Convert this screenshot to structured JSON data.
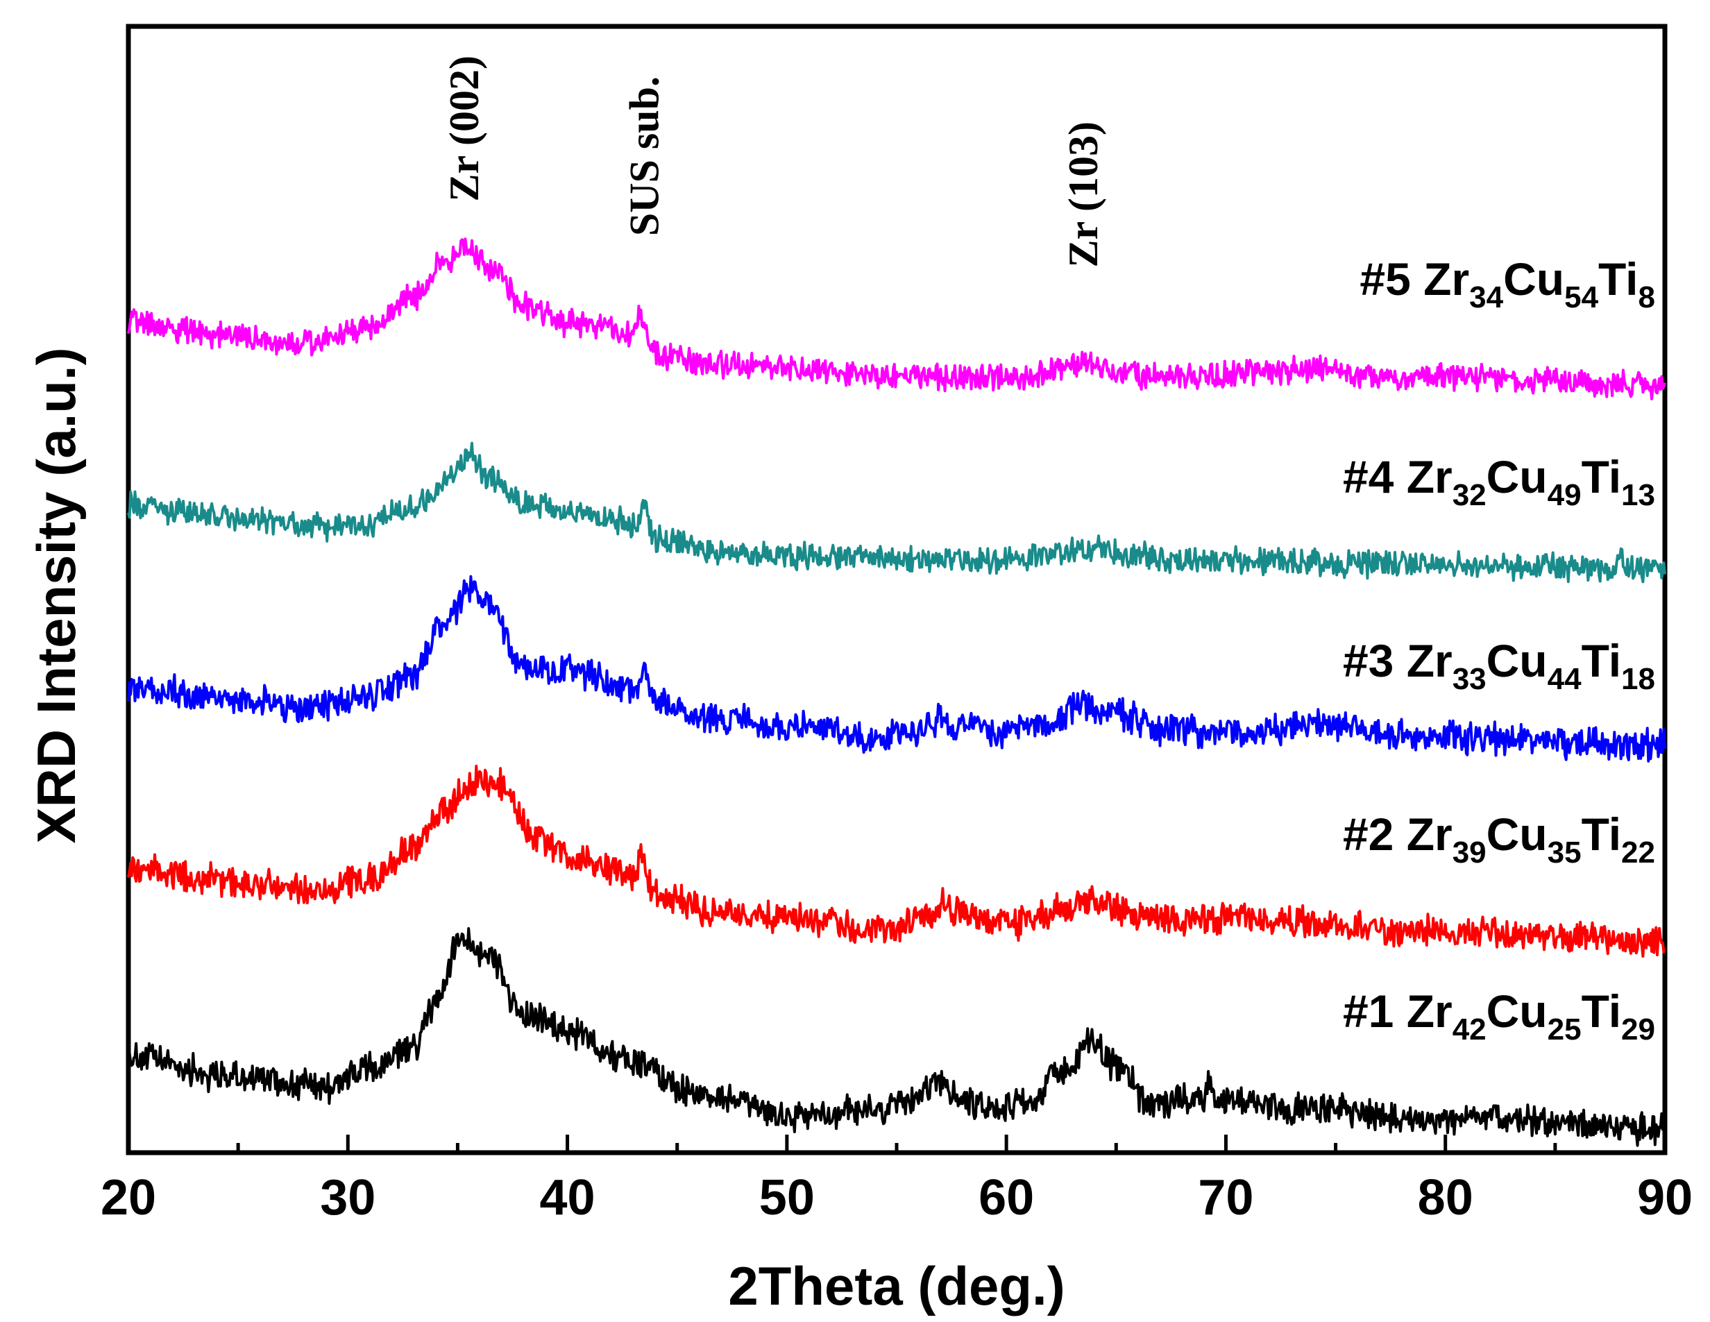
{
  "chart_data": {
    "type": "line",
    "title": "",
    "xlabel": "2Theta (deg.)",
    "ylabel": "XRD Intensity (a.u.)",
    "xlim": [
      20,
      90
    ],
    "xticks": [
      20,
      30,
      40,
      50,
      60,
      70,
      80,
      90
    ],
    "yticks_shown": false,
    "peak_annotations": [
      {
        "label": "Zr (002)",
        "x": 35.3
      },
      {
        "label": "SUS sub.",
        "x": 43.5
      },
      {
        "label": "Zr (103)",
        "x": 63.5
      }
    ],
    "series": [
      {
        "id": "s1",
        "label_num": "#1 ",
        "color": "#000000",
        "formula": [
          [
            "Zr",
            "42"
          ],
          [
            "Cu",
            "25"
          ],
          [
            "Ti",
            "29"
          ]
        ],
        "baseline": 1.0,
        "bg": 0.03,
        "points": [
          [
            20,
            0.17
          ],
          [
            25,
            0.12
          ],
          [
            29,
            0.1
          ],
          [
            31,
            0.14
          ],
          [
            33,
            0.19
          ],
          [
            34,
            0.3
          ],
          [
            35.2,
            0.46
          ],
          [
            36.5,
            0.41
          ],
          [
            38,
            0.27
          ],
          [
            40,
            0.23
          ],
          [
            43,
            0.16
          ],
          [
            46,
            0.08
          ],
          [
            50,
            0.03
          ],
          [
            54,
            0.04
          ],
          [
            57,
            0.09
          ],
          [
            59,
            0.05
          ],
          [
            61,
            0.06
          ],
          [
            62.5,
            0.13
          ],
          [
            63.8,
            0.2
          ],
          [
            65,
            0.15
          ],
          [
            66.5,
            0.06
          ],
          [
            69,
            0.07
          ],
          [
            72,
            0.05
          ],
          [
            80,
            0.02
          ],
          [
            90,
            0.0
          ]
        ],
        "spikes": [
          [
            57.0,
            0.02
          ],
          [
            69.2,
            0.03
          ],
          [
            82.0,
            0.02
          ]
        ]
      },
      {
        "id": "s2",
        "label_num": "#2 ",
        "color": "#ff0000",
        "formula": [
          [
            "Zr",
            "39"
          ],
          [
            "Cu",
            "35"
          ],
          [
            "Ti",
            "22"
          ]
        ],
        "baseline": 1.0,
        "bg": 0.03,
        "points": [
          [
            20,
            0.17
          ],
          [
            25,
            0.14
          ],
          [
            29,
            0.12
          ],
          [
            31,
            0.15
          ],
          [
            33,
            0.22
          ],
          [
            34.5,
            0.32
          ],
          [
            35.8,
            0.38
          ],
          [
            37,
            0.37
          ],
          [
            38.5,
            0.25
          ],
          [
            40,
            0.2
          ],
          [
            43,
            0.16
          ],
          [
            44.5,
            0.1
          ],
          [
            47,
            0.06
          ],
          [
            50,
            0.05
          ],
          [
            54,
            0.02
          ],
          [
            57,
            0.07
          ],
          [
            60,
            0.04
          ],
          [
            62.5,
            0.07
          ],
          [
            64,
            0.1
          ],
          [
            66,
            0.05
          ],
          [
            70,
            0.05
          ],
          [
            80,
            0.02
          ],
          [
            90,
            0.0
          ]
        ],
        "spikes": [
          [
            43.4,
            0.06
          ],
          [
            57.0,
            0.02
          ]
        ]
      },
      {
        "id": "s3",
        "label_num": "#3 ",
        "color": "#0000ff",
        "formula": [
          [
            "Zr",
            "33"
          ],
          [
            "Cu",
            "44"
          ],
          [
            "Ti",
            "18"
          ]
        ],
        "baseline": 1.0,
        "bg": 0.03,
        "points": [
          [
            20,
            0.14
          ],
          [
            25,
            0.11
          ],
          [
            28,
            0.09
          ],
          [
            31,
            0.12
          ],
          [
            33,
            0.17
          ],
          [
            34.5,
            0.3
          ],
          [
            35.5,
            0.38
          ],
          [
            36.5,
            0.34
          ],
          [
            38,
            0.19
          ],
          [
            40,
            0.18
          ],
          [
            43,
            0.14
          ],
          [
            44.5,
            0.1
          ],
          [
            47,
            0.06
          ],
          [
            50,
            0.05
          ],
          [
            54,
            0.02
          ],
          [
            57,
            0.05
          ],
          [
            60,
            0.03
          ],
          [
            62,
            0.06
          ],
          [
            63.5,
            0.1
          ],
          [
            65,
            0.08
          ],
          [
            67,
            0.04
          ],
          [
            70,
            0.03
          ],
          [
            74,
            0.05
          ],
          [
            80,
            0.02
          ],
          [
            90,
            0.0
          ]
        ],
        "spikes": [
          [
            43.5,
            0.06
          ],
          [
            57.0,
            0.02
          ],
          [
            68.5,
            0.02
          ],
          [
            74.0,
            0.02
          ]
        ]
      },
      {
        "id": "s4",
        "label_num": "#4 ",
        "color": "#1a8b8b",
        "formula": [
          [
            "Zr",
            "32"
          ],
          [
            "Cu",
            "49"
          ],
          [
            "Ti",
            "13"
          ]
        ],
        "baseline": 1.0,
        "bg": 0.025,
        "points": [
          [
            20,
            0.15
          ],
          [
            25,
            0.12
          ],
          [
            29,
            0.1
          ],
          [
            31,
            0.11
          ],
          [
            33,
            0.15
          ],
          [
            34.5,
            0.21
          ],
          [
            35.5,
            0.27
          ],
          [
            36.5,
            0.22
          ],
          [
            38,
            0.16
          ],
          [
            40,
            0.14
          ],
          [
            43,
            0.11
          ],
          [
            44.5,
            0.07
          ],
          [
            47,
            0.04
          ],
          [
            50,
            0.03
          ],
          [
            56,
            0.02
          ],
          [
            60,
            0.02
          ],
          [
            62.5,
            0.04
          ],
          [
            64,
            0.05
          ],
          [
            65.5,
            0.03
          ],
          [
            70,
            0.02
          ],
          [
            80,
            0.01
          ],
          [
            90,
            0.0
          ]
        ],
        "spikes": [
          [
            43.5,
            0.07
          ],
          [
            88.0,
            0.03
          ]
        ]
      },
      {
        "id": "s5",
        "label_num": "#5 ",
        "color": "#ff00ff",
        "formula": [
          [
            "Zr",
            "34"
          ],
          [
            "Cu",
            "54"
          ],
          [
            "Ti",
            "8"
          ]
        ],
        "baseline": 1.0,
        "bg": 0.025,
        "points": [
          [
            20,
            0.15
          ],
          [
            24,
            0.12
          ],
          [
            28,
            0.1
          ],
          [
            31,
            0.13
          ],
          [
            33,
            0.21
          ],
          [
            34.5,
            0.3
          ],
          [
            35.3,
            0.33
          ],
          [
            36.5,
            0.28
          ],
          [
            38,
            0.19
          ],
          [
            40,
            0.15
          ],
          [
            43,
            0.13
          ],
          [
            44.5,
            0.07
          ],
          [
            47,
            0.05
          ],
          [
            50,
            0.04
          ],
          [
            56,
            0.02
          ],
          [
            61,
            0.02
          ],
          [
            63.5,
            0.05
          ],
          [
            65,
            0.03
          ],
          [
            68,
            0.02
          ],
          [
            72,
            0.03
          ],
          [
            74,
            0.04
          ],
          [
            76,
            0.02
          ],
          [
            80,
            0.02
          ],
          [
            90,
            0.0
          ]
        ],
        "spikes": [
          [
            43.3,
            0.05
          ]
        ]
      }
    ]
  }
}
